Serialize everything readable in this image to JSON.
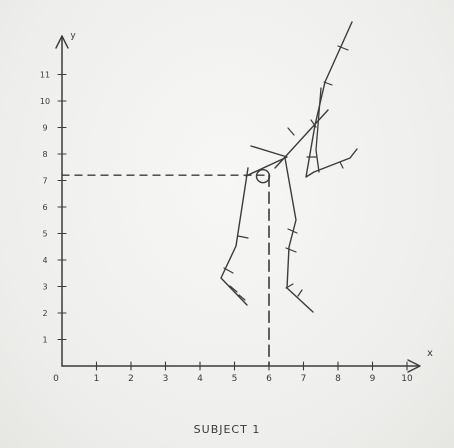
{
  "diagram": {
    "x_axis_label": "x",
    "y_axis_label": "y",
    "x_range": [
      0,
      10
    ],
    "y_range": [
      0,
      12
    ],
    "x_ticks": [
      "0",
      "1",
      "2",
      "3",
      "4",
      "5",
      "6",
      "7",
      "8",
      "9",
      "10"
    ],
    "y_ticks": [
      "1",
      "2",
      "3",
      "4",
      "5",
      "6",
      "7",
      "8",
      "9",
      "10",
      "11"
    ],
    "marked_point": {
      "x": 6,
      "y": 7.2,
      "label_x": "6",
      "label_y": "7"
    },
    "caption": "SUBJECT 1",
    "ink_color": "#3c3c3c"
  }
}
